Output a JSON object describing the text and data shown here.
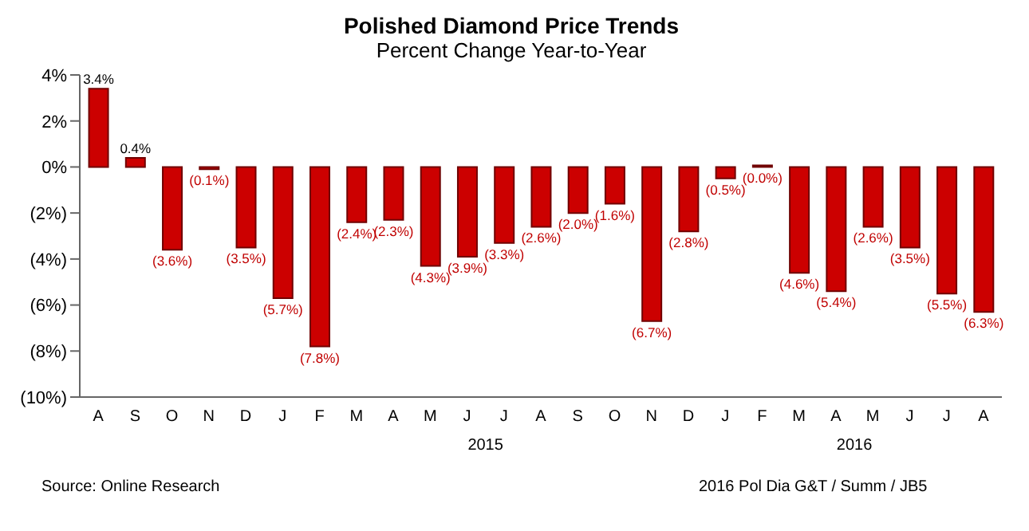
{
  "chart_data": {
    "type": "bar",
    "title": "Polished Diamond Price Trends",
    "subtitle": "Percent Change Year-to-Year",
    "categories": [
      "A",
      "S",
      "O",
      "N",
      "D",
      "J",
      "F",
      "M",
      "A",
      "M",
      "J",
      "J",
      "A",
      "S",
      "O",
      "N",
      "D",
      "J",
      "F",
      "M",
      "A",
      "M",
      "J",
      "J",
      "A"
    ],
    "values": [
      3.4,
      0.4,
      -3.6,
      -0.1,
      -3.5,
      -5.7,
      -7.8,
      -2.4,
      -2.3,
      -4.3,
      -3.9,
      -3.3,
      -2.6,
      -2.0,
      -1.6,
      -6.7,
      -2.8,
      -0.5,
      0.0,
      -4.6,
      -5.4,
      -2.6,
      -3.5,
      -5.5,
      -6.3
    ],
    "value_labels": [
      "3.4%",
      "0.4%",
      "(3.6%)",
      "(0.1%)",
      "(3.5%)",
      "(5.7%)",
      "(7.8%)",
      "(2.4%)",
      "(2.3%)",
      "(4.3%)",
      "(3.9%)",
      "(3.3%)",
      "(2.6%)",
      "(2.0%)",
      "(1.6%)",
      "(6.7%)",
      "(2.8%)",
      "(0.5%)",
      "(0.0%)",
      "(4.6%)",
      "(5.4%)",
      "(2.6%)",
      "(3.5%)",
      "(5.5%)",
      "(6.3%)"
    ],
    "color": "#cc0000",
    "ylim": [
      -10,
      4
    ],
    "yticks": [
      {
        "value": 4,
        "label": "4%"
      },
      {
        "value": 2,
        "label": "2%"
      },
      {
        "value": 0,
        "label": "0%"
      },
      {
        "value": -2,
        "label": "(2%)"
      },
      {
        "value": -4,
        "label": "(4%)"
      },
      {
        "value": -6,
        "label": "(6%)"
      },
      {
        "value": -8,
        "label": "(8%)"
      },
      {
        "value": -10,
        "label": "(10%)"
      }
    ],
    "grid": false,
    "legend": false,
    "annotations": [
      "2015",
      "2016",
      "Source: Online Research",
      "2016 Pol Dia G&T / Summ / JB5"
    ]
  }
}
